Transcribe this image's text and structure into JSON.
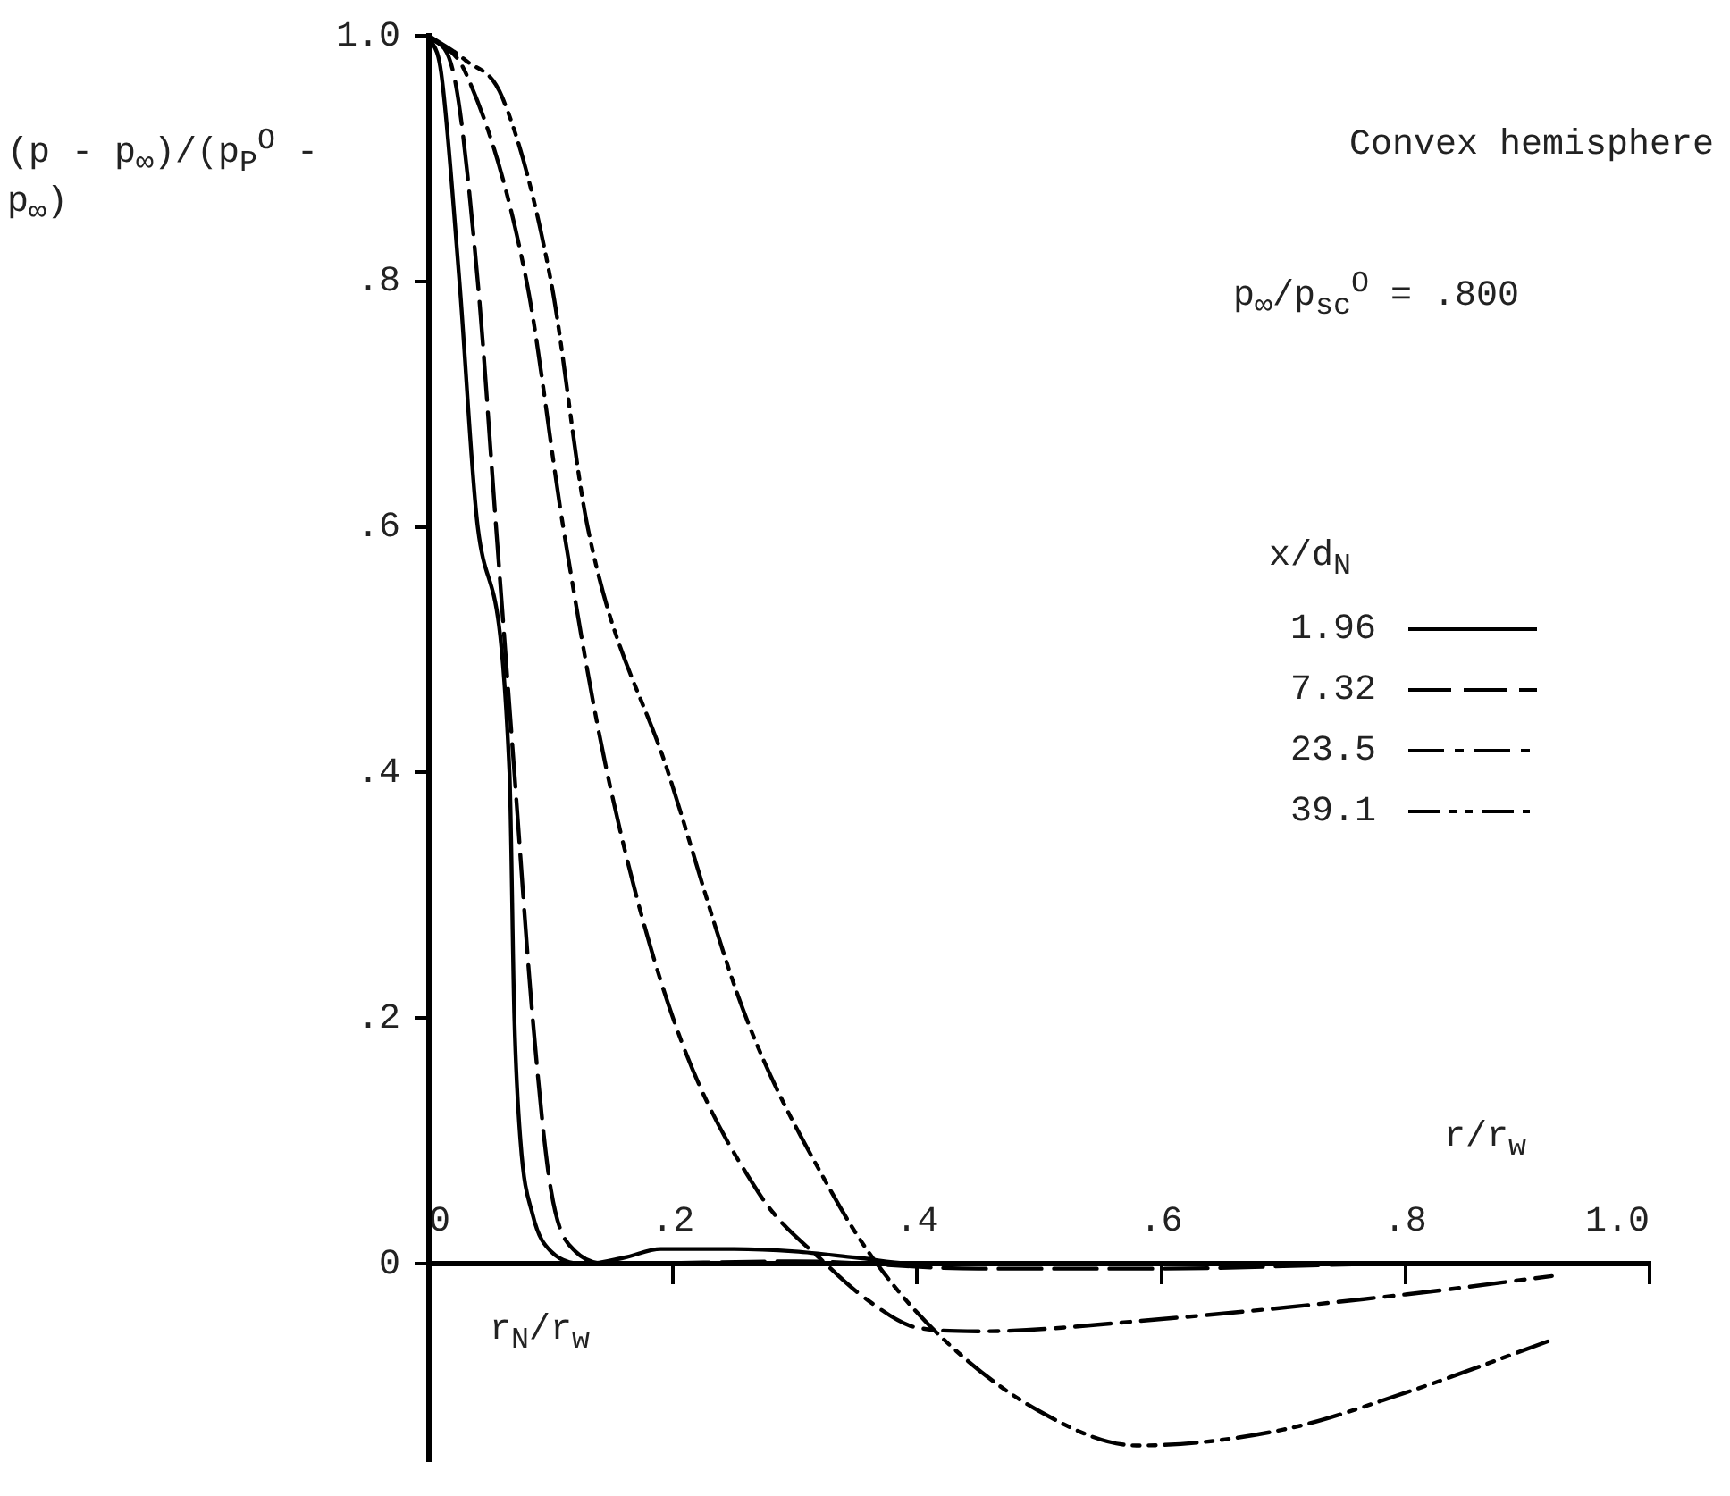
{
  "chart_data": {
    "type": "line",
    "xlabel": "r/r$_{w}$",
    "ylabel": "(p - p$_{∞}$)/(p$_{P}$$^{O}$ - p$_{∞}$)",
    "legend_title": "x/d$_{N}$",
    "annotations": [
      "Convex hemisphere",
      "p$_{∞}$/p$_{sc}$$^{O}$ = .800",
      "r$_{N}$/r$_{w}$"
    ],
    "xlim": [
      0,
      1.0
    ],
    "xticks": [
      {
        "value": 0,
        "label": "0"
      },
      {
        "value": 0.2,
        "label": ".2"
      },
      {
        "value": 0.4,
        "label": ".4"
      },
      {
        "value": 0.6,
        "label": ".6"
      },
      {
        "value": 0.8,
        "label": ".8"
      },
      {
        "value": 1.0,
        "label": "1.0"
      }
    ],
    "ylim": [
      -0.16,
      1.0
    ],
    "yticks": [
      {
        "value": 0,
        "label": "0"
      },
      {
        "value": 0.2,
        "label": ".2"
      },
      {
        "value": 0.4,
        "label": ".4"
      },
      {
        "value": 0.6,
        "label": ".6"
      },
      {
        "value": 0.8,
        "label": ".8"
      },
      {
        "value": 1.0,
        "label": "1.0"
      }
    ],
    "grid": false,
    "legend": "right",
    "marker": "none",
    "series": [
      {
        "name": "1.96",
        "color": "#000000",
        "line_style": "solid",
        "x": [
          0,
          0.01,
          0.025,
          0.04,
          0.066,
          0.07,
          0.075,
          0.085,
          0.1,
          0.13,
          0.16,
          0.19,
          0.25,
          0.3,
          0.35,
          0.4,
          0.9
        ],
        "values": [
          1.0,
          0.97,
          0.8,
          0.6,
          0.4,
          0.2,
          0.1,
          0.04,
          0.01,
          0.0,
          0.005,
          0.012,
          0.012,
          0.01,
          0.005,
          0.0,
          0.0
        ]
      },
      {
        "name": "7.32",
        "color": "#000000",
        "line_style": "dashed",
        "x": [
          0,
          0.02,
          0.04,
          0.055,
          0.07,
          0.085,
          0.1,
          0.12,
          0.15,
          0.3,
          0.45,
          0.6,
          0.8,
          0.9
        ],
        "values": [
          1.0,
          0.97,
          0.8,
          0.6,
          0.4,
          0.2,
          0.06,
          0.01,
          0.0,
          0.002,
          -0.004,
          -0.004,
          0.0,
          0.0
        ]
      },
      {
        "name": "23.5",
        "color": "#000000",
        "line_style": "dashdot",
        "x": [
          0,
          0.03,
          0.08,
          0.11,
          0.146,
          0.2,
          0.27,
          0.325,
          0.36,
          0.4,
          0.45,
          0.6,
          0.8,
          0.92
        ],
        "values": [
          1.0,
          0.97,
          0.8,
          0.6,
          0.4,
          0.2,
          0.058,
          0.0,
          -0.03,
          -0.052,
          -0.055,
          -0.045,
          -0.025,
          -0.01
        ]
      },
      {
        "name": "39.1",
        "color": "#000000",
        "line_style": "dashdotdot",
        "x": [
          0,
          0.03,
          0.06,
          0.1,
          0.13,
          0.196,
          0.26,
          0.33,
          0.367,
          0.42,
          0.5,
          0.58,
          0.7,
          0.8,
          0.92
        ],
        "values": [
          1.0,
          0.98,
          0.95,
          0.8,
          0.6,
          0.4,
          0.2,
          0.058,
          0.0,
          -0.06,
          -0.12,
          -0.148,
          -0.135,
          -0.105,
          -0.062
        ]
      }
    ]
  }
}
